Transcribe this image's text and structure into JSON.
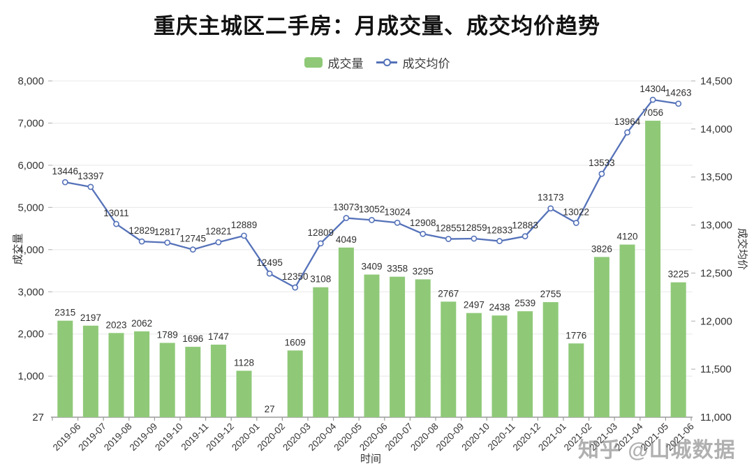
{
  "title": "重庆主城区二手房：月成交量、成交均价趋势",
  "legend": {
    "volume_label": "成交量",
    "price_label": "成交均价"
  },
  "watermark": "知乎 @山城数据",
  "colors": {
    "bar": "#8fc978",
    "line": "#5572b9",
    "grid": "#e8e8e8",
    "axis": "#9a9a9a",
    "tick_text": "#333333",
    "data_label": "#2f2f2f"
  },
  "chart_data": {
    "type": "bar+line combo",
    "title": "重庆主城区二手房：月成交量、成交均价趋势",
    "xlabel": "时间",
    "ylabel_left": "成交量",
    "ylabel_right": "成交均价",
    "legend_position": "top-center",
    "grid": "horizontal, left-axis ticks only",
    "categories": [
      "2019-06",
      "2019-07",
      "2019-08",
      "2019-09",
      "2019-10",
      "2019-11",
      "2019-12",
      "2020-01",
      "2020-02",
      "2020-03",
      "2020-04",
      "2020-05",
      "2020-06",
      "2020-07",
      "2020-08",
      "2020-09",
      "2020-10",
      "2020-11",
      "2020-12",
      "2021-01",
      "2021-02",
      "2021-03",
      "2021-04",
      "2021-05",
      "2021-06"
    ],
    "series": [
      {
        "name": "成交量",
        "type": "bar",
        "axis": "left",
        "color": "#8fc978",
        "values": [
          2315,
          2197,
          2023,
          2062,
          1789,
          1696,
          1747,
          1128,
          27,
          1609,
          3108,
          4049,
          3409,
          3358,
          3295,
          2767,
          2497,
          2438,
          2539,
          2755,
          1776,
          3826,
          4120,
          7056,
          3225
        ]
      },
      {
        "name": "成交均价",
        "type": "line",
        "axis": "right",
        "color": "#5572b9",
        "values": [
          13446,
          13397,
          13011,
          12829,
          12817,
          12745,
          12821,
          12889,
          12495,
          12350,
          12809,
          13073,
          13052,
          13024,
          12908,
          12855,
          12859,
          12833,
          12883,
          13173,
          13022,
          13533,
          13964,
          14304,
          14263
        ]
      }
    ],
    "left_axis": {
      "min": 27,
      "max": 8000,
      "ticks": [
        27,
        1000,
        2000,
        3000,
        4000,
        5000,
        6000,
        7000,
        8000
      ]
    },
    "right_axis": {
      "min": 11000,
      "max": 14500,
      "ticks": [
        11000,
        11500,
        12000,
        12500,
        13000,
        13500,
        14000,
        14500
      ]
    }
  }
}
